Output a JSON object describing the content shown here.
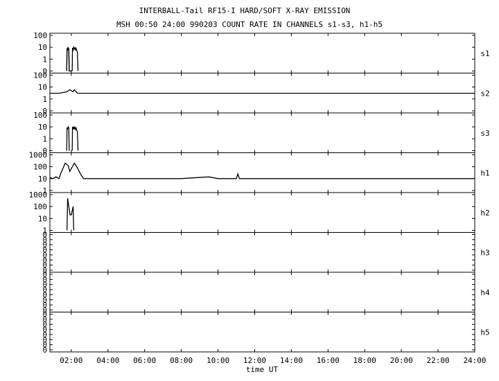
{
  "chart_data": {
    "type": "line",
    "title": "INTERBALL-Tail RF15-I HARD/SOFT X-RAY EMISSION",
    "subtitle": "MSH 00:50 24:00 990203  COUNT RATE IN CHANNELS s1-s3, h1-h5",
    "xlabel": "time UT",
    "xlim": [
      "00:50",
      "24:00"
    ],
    "x_ticks": [
      "02:00",
      "04:00",
      "06:00",
      "08:00",
      "10:00",
      "12:00",
      "14:00",
      "16:00",
      "18:00",
      "20:00",
      "22:00",
      "24:00"
    ],
    "panels": [
      {
        "name": "s1",
        "y_scale": "log",
        "y_ticks": [
          "100",
          "10",
          "1",
          "0"
        ],
        "segments": [
          {
            "x": [
              "01:45",
              "01:46",
              "01:47",
              "01:50",
              "01:52",
              "01:53",
              "01:55",
              "01:58",
              "02:00",
              "02:01",
              "02:02"
            ],
            "y": [
              0,
              8,
              5,
              9,
              7,
              0,
              0,
              0,
              0,
              0,
              0
            ]
          },
          {
            "x": [
              "01:45",
              "01:46",
              "01:47",
              "01:49",
              "01:51",
              "01:52",
              "01:53"
            ],
            "y": [
              0,
              8,
              6,
              9,
              8,
              7,
              0
            ]
          },
          {
            "x": [
              "02:03",
              "02:04",
              "02:06",
              "02:08",
              "02:10",
              "02:12",
              "02:14",
              "02:16",
              "02:18",
              "02:20",
              "02:22"
            ],
            "y": [
              0,
              9,
              6,
              10,
              7,
              9,
              6,
              8,
              5,
              4,
              0
            ]
          }
        ]
      },
      {
        "name": "s2",
        "y_scale": "log",
        "y_ticks": [
          "100",
          "10",
          "1",
          "0"
        ],
        "segments": [
          {
            "x": [
              "00:50",
              "01:20",
              "01:45",
              "01:55",
              "02:05",
              "02:10",
              "02:20",
              "02:40",
              "24:00"
            ],
            "y": [
              3,
              3,
              4,
              6,
              4,
              6,
              3,
              3,
              3
            ]
          }
        ]
      },
      {
        "name": "s3",
        "y_scale": "log",
        "y_ticks": [
          "100",
          "10",
          "1",
          "0"
        ],
        "segments": [
          {
            "x": [
              "01:45",
              "01:46",
              "01:47",
              "01:50",
              "01:52",
              "01:53"
            ],
            "y": [
              0,
              9,
              6,
              10,
              8,
              0
            ]
          },
          {
            "x": [
              "02:03",
              "02:04",
              "02:06",
              "02:08",
              "02:10",
              "02:12",
              "02:14",
              "02:16",
              "02:18",
              "02:20",
              "02:22"
            ],
            "y": [
              0,
              10,
              6,
              11,
              7,
              9,
              6,
              8,
              5,
              4,
              0
            ]
          }
        ]
      },
      {
        "name": "h1",
        "y_scale": "log",
        "y_ticks": [
          "1000",
          "100",
          "10",
          "1"
        ],
        "segments": [
          {
            "x": [
              "00:50",
              "01:00",
              "01:10",
              "01:20",
              "01:25",
              "01:40",
              "01:50",
              "01:55",
              "02:00",
              "02:10",
              "02:20",
              "02:30",
              "02:40",
              "03:00",
              "04:00",
              "06:00",
              "08:00",
              "09:30",
              "10:00",
              "11:00",
              "11:05",
              "11:10",
              "12:00",
              "24:00"
            ],
            "y": [
              12,
              10,
              14,
              10,
              25,
              200,
              120,
              40,
              70,
              200,
              80,
              25,
              10,
              10,
              10,
              10,
              10,
              14,
              10,
              10,
              25,
              10,
              10,
              10
            ]
          }
        ]
      },
      {
        "name": "h2",
        "y_scale": "log",
        "y_ticks": [
          "1000",
          "100",
          "10",
          "1"
        ],
        "segments": [
          {
            "x": [
              "01:46",
              "01:48",
              "01:52",
              "01:56",
              "02:00",
              "02:06",
              "02:08"
            ],
            "y": [
              1,
              500,
              100,
              20,
              20,
              100,
              1
            ]
          }
        ]
      },
      {
        "name": "h3",
        "y_scale": "log",
        "y_ticks": [
          "0",
          "0",
          "0",
          "0",
          "0",
          "0",
          "0",
          "0"
        ],
        "segments": []
      },
      {
        "name": "h4",
        "y_scale": "log",
        "y_ticks": [
          "0",
          "0",
          "0",
          "0",
          "0",
          "0",
          "0",
          "0"
        ],
        "segments": []
      },
      {
        "name": "h5",
        "y_scale": "log",
        "y_ticks": [
          "0",
          "0",
          "0",
          "0",
          "0",
          "0",
          "0",
          "0"
        ],
        "segments": []
      }
    ]
  }
}
